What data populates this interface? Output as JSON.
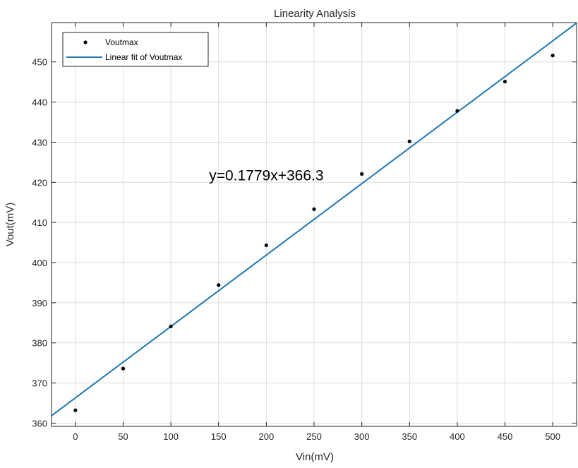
{
  "chart_data": {
    "type": "scatter",
    "title": "Linearity Analysis",
    "xlabel": "Vin(mV)",
    "ylabel": "Vout(mV)",
    "xlim": [
      -25,
      525
    ],
    "ylim": [
      359.2,
      459.8
    ],
    "xticks": [
      0,
      50,
      100,
      150,
      200,
      250,
      300,
      350,
      400,
      450,
      500
    ],
    "yticks": [
      360,
      370,
      380,
      390,
      400,
      410,
      420,
      430,
      440,
      450
    ],
    "grid": true,
    "legend_position": "top-left",
    "series": [
      {
        "name": "Voutmax",
        "kind": "scatter",
        "color": "#000000",
        "x": [
          0,
          50,
          100,
          150,
          200,
          250,
          300,
          350,
          400,
          450,
          500
        ],
        "y": [
          363.2,
          373.6,
          384.1,
          394.4,
          404.3,
          413.3,
          422.1,
          430.2,
          437.8,
          445.1,
          451.6
        ]
      },
      {
        "name": "Linear fit of Voutmax",
        "kind": "line",
        "color": "#1f77b4",
        "slope": 0.1779,
        "intercept": 366.3
      }
    ],
    "annotations": [
      {
        "text": "y=0.1779x+366.3",
        "x": 200,
        "y": 420.5
      }
    ]
  }
}
